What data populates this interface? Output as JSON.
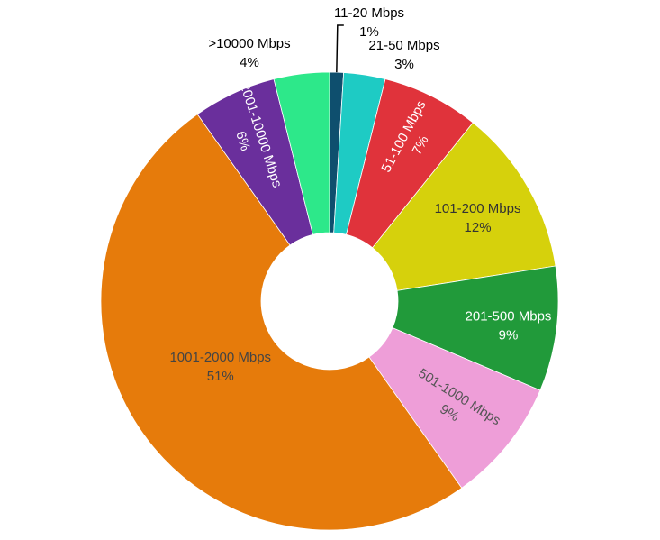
{
  "chart_data": {
    "type": "pie",
    "variant": "donut",
    "title": "",
    "slices": [
      {
        "label": "11-20 Mbps",
        "pct_label": "1%",
        "value": 1,
        "color": "#0e4f6e",
        "text_color": "#000000"
      },
      {
        "label": "21-50 Mbps",
        "pct_label": "3%",
        "value": 3,
        "color": "#1ecbc4",
        "text_color": "#000000"
      },
      {
        "label": "51-100 Mbps",
        "pct_label": "7%",
        "value": 7,
        "color": "#e0333b",
        "text_color": "#ffffff"
      },
      {
        "label": "101-200 Mbps",
        "pct_label": "12%",
        "value": 12,
        "color": "#d6d10c",
        "text_color": "#333333"
      },
      {
        "label": "201-500 Mbps",
        "pct_label": "9%",
        "value": 9,
        "color": "#219a3a",
        "text_color": "#ffffff"
      },
      {
        "label": "501-1000 Mbps",
        "pct_label": "9%",
        "value": 9,
        "color": "#ee9ed8",
        "text_color": "#555555"
      },
      {
        "label": "1001-2000 Mbps",
        "pct_label": "51%",
        "value": 51,
        "color": "#e67b0b",
        "text_color": "#444444"
      },
      {
        "label": "2001-10000 Mbps",
        "pct_label": "6%",
        "value": 6,
        "color": "#6a2f9c",
        "text_color": "#ffffff"
      },
      {
        "label": ">10000 Mbps",
        "pct_label": "4%",
        "value": 4,
        "color": "#2de88a",
        "text_color": "#000000"
      }
    ]
  }
}
